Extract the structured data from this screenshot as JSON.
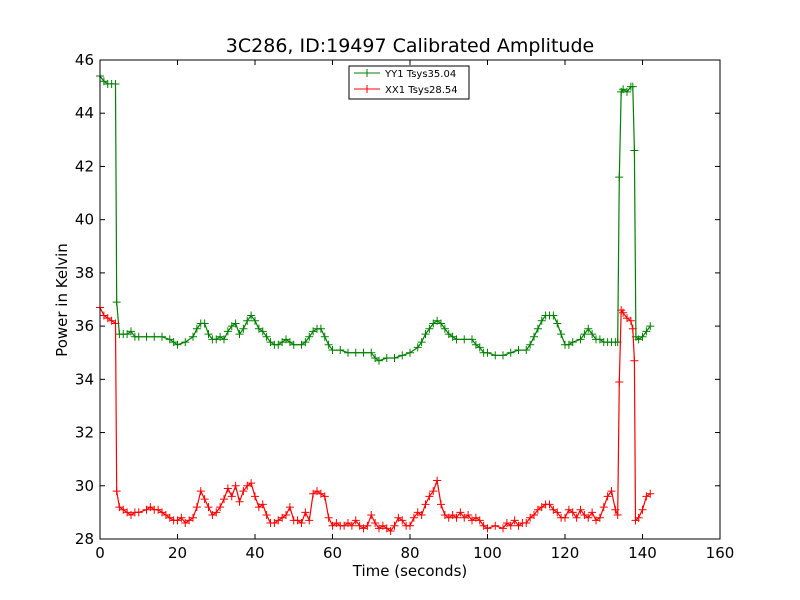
{
  "chart_data": {
    "type": "line",
    "title": "3C286, ID:19497 Calibrated Amplitude",
    "xlabel": "Time (seconds)",
    "ylabel": "Power in Kelvin",
    "xlim": [
      0,
      160
    ],
    "ylim": [
      28,
      46
    ],
    "xticks": [
      "0",
      "20",
      "40",
      "60",
      "80",
      "100",
      "120",
      "140",
      "160"
    ],
    "yticks": [
      "28",
      "30",
      "32",
      "34",
      "36",
      "38",
      "40",
      "42",
      "44",
      "46"
    ],
    "grid": false,
    "legend_position": "top-center",
    "marker": "plus",
    "series": [
      {
        "name": "YY1 Tsys35.04",
        "color": "#008000",
        "points": [
          [
            0,
            45.4
          ],
          [
            1,
            45.2
          ],
          [
            2,
            45.1
          ],
          [
            3,
            45.1
          ],
          [
            4,
            45.1
          ],
          [
            4.3,
            36.9
          ],
          [
            5,
            35.7
          ],
          [
            6,
            35.7
          ],
          [
            7,
            35.7
          ],
          [
            8,
            35.8
          ],
          [
            9,
            35.6
          ],
          [
            10,
            35.6
          ],
          [
            12,
            35.6
          ],
          [
            14,
            35.6
          ],
          [
            16,
            35.6
          ],
          [
            18,
            35.5
          ],
          [
            19,
            35.4
          ],
          [
            20,
            35.3
          ],
          [
            22,
            35.4
          ],
          [
            24,
            35.6
          ],
          [
            25,
            35.9
          ],
          [
            26,
            36.1
          ],
          [
            27,
            36.1
          ],
          [
            28,
            35.7
          ],
          [
            29,
            35.5
          ],
          [
            30,
            35.5
          ],
          [
            31,
            35.6
          ],
          [
            32,
            35.5
          ],
          [
            33,
            35.8
          ],
          [
            34,
            36.0
          ],
          [
            35,
            36.1
          ],
          [
            36,
            35.7
          ],
          [
            37,
            35.9
          ],
          [
            38,
            36.2
          ],
          [
            39,
            36.4
          ],
          [
            40,
            36.2
          ],
          [
            41,
            35.9
          ],
          [
            42,
            35.8
          ],
          [
            43,
            35.6
          ],
          [
            44,
            35.4
          ],
          [
            45,
            35.3
          ],
          [
            46,
            35.3
          ],
          [
            47,
            35.4
          ],
          [
            48,
            35.5
          ],
          [
            49,
            35.4
          ],
          [
            50,
            35.3
          ],
          [
            52,
            35.3
          ],
          [
            53,
            35.4
          ],
          [
            54,
            35.6
          ],
          [
            55,
            35.8
          ],
          [
            56,
            35.9
          ],
          [
            57,
            35.9
          ],
          [
            58,
            35.6
          ],
          [
            59,
            35.3
          ],
          [
            60,
            35.1
          ],
          [
            62,
            35.1
          ],
          [
            64,
            35.0
          ],
          [
            66,
            35.0
          ],
          [
            68,
            35.0
          ],
          [
            70,
            35.0
          ],
          [
            71,
            34.8
          ],
          [
            72,
            34.7
          ],
          [
            74,
            34.8
          ],
          [
            76,
            34.8
          ],
          [
            78,
            34.9
          ],
          [
            80,
            35.0
          ],
          [
            82,
            35.2
          ],
          [
            83,
            35.4
          ],
          [
            84,
            35.7
          ],
          [
            85,
            35.9
          ],
          [
            86,
            36.1
          ],
          [
            87,
            36.2
          ],
          [
            88,
            36.1
          ],
          [
            89,
            35.9
          ],
          [
            90,
            35.7
          ],
          [
            91,
            35.6
          ],
          [
            92,
            35.5
          ],
          [
            94,
            35.5
          ],
          [
            96,
            35.5
          ],
          [
            97,
            35.3
          ],
          [
            98,
            35.2
          ],
          [
            99,
            35.0
          ],
          [
            100,
            35.0
          ],
          [
            102,
            34.9
          ],
          [
            104,
            34.9
          ],
          [
            106,
            35.0
          ],
          [
            108,
            35.1
          ],
          [
            110,
            35.1
          ],
          [
            111,
            35.3
          ],
          [
            112,
            35.6
          ],
          [
            113,
            35.9
          ],
          [
            114,
            36.2
          ],
          [
            115,
            36.4
          ],
          [
            116,
            36.4
          ],
          [
            117,
            36.4
          ],
          [
            118,
            36.1
          ],
          [
            119,
            35.7
          ],
          [
            120,
            35.3
          ],
          [
            121,
            35.3
          ],
          [
            122,
            35.4
          ],
          [
            124,
            35.5
          ],
          [
            125,
            35.7
          ],
          [
            126,
            35.9
          ],
          [
            127,
            35.7
          ],
          [
            128,
            35.5
          ],
          [
            129,
            35.5
          ],
          [
            130,
            35.4
          ],
          [
            131,
            35.4
          ],
          [
            132,
            35.4
          ],
          [
            133,
            35.4
          ],
          [
            133.6,
            35.4
          ],
          [
            134,
            41.6
          ],
          [
            134.5,
            44.8
          ],
          [
            135,
            44.9
          ],
          [
            136,
            44.8
          ],
          [
            137,
            45.0
          ],
          [
            137.5,
            45.0
          ],
          [
            137.9,
            42.6
          ],
          [
            138.3,
            35.6
          ],
          [
            139,
            35.5
          ],
          [
            140,
            35.6
          ],
          [
            141,
            35.8
          ],
          [
            142,
            36.0
          ]
        ]
      },
      {
        "name": "XX1 Tsys28.54",
        "color": "#ff0000",
        "points": [
          [
            0,
            36.7
          ],
          [
            1,
            36.4
          ],
          [
            2,
            36.3
          ],
          [
            3,
            36.2
          ],
          [
            4,
            36.1
          ],
          [
            4.3,
            29.8
          ],
          [
            5,
            29.2
          ],
          [
            6,
            29.1
          ],
          [
            7,
            29.0
          ],
          [
            8,
            28.9
          ],
          [
            9,
            29.0
          ],
          [
            10,
            29.0
          ],
          [
            12,
            29.1
          ],
          [
            13,
            29.2
          ],
          [
            14,
            29.1
          ],
          [
            15,
            29.1
          ],
          [
            16,
            29.0
          ],
          [
            17,
            28.9
          ],
          [
            18,
            28.8
          ],
          [
            19,
            28.7
          ],
          [
            20,
            28.7
          ],
          [
            21,
            28.8
          ],
          [
            22,
            28.6
          ],
          [
            23,
            28.7
          ],
          [
            24,
            28.8
          ],
          [
            25,
            29.2
          ],
          [
            26,
            29.8
          ],
          [
            27,
            29.5
          ],
          [
            28,
            29.2
          ],
          [
            29,
            28.9
          ],
          [
            30,
            29.0
          ],
          [
            31,
            29.2
          ],
          [
            32,
            29.5
          ],
          [
            33,
            29.9
          ],
          [
            34,
            29.6
          ],
          [
            35,
            30.0
          ],
          [
            36,
            29.4
          ],
          [
            37,
            29.8
          ],
          [
            38,
            30.0
          ],
          [
            39,
            30.1
          ],
          [
            40,
            29.6
          ],
          [
            41,
            29.2
          ],
          [
            42,
            29.3
          ],
          [
            43,
            28.9
          ],
          [
            44,
            28.6
          ],
          [
            45,
            28.6
          ],
          [
            46,
            28.7
          ],
          [
            47,
            28.8
          ],
          [
            48,
            28.9
          ],
          [
            49,
            29.2
          ],
          [
            50,
            28.7
          ],
          [
            51,
            28.7
          ],
          [
            52,
            28.6
          ],
          [
            53,
            29.0
          ],
          [
            54,
            28.7
          ],
          [
            55,
            29.7
          ],
          [
            56,
            29.8
          ],
          [
            57,
            29.7
          ],
          [
            58,
            29.6
          ],
          [
            59,
            28.8
          ],
          [
            60,
            28.5
          ],
          [
            61,
            28.6
          ],
          [
            62,
            28.5
          ],
          [
            63,
            28.5
          ],
          [
            64,
            28.6
          ],
          [
            65,
            28.5
          ],
          [
            66,
            28.7
          ],
          [
            67,
            28.5
          ],
          [
            68,
            28.4
          ],
          [
            69,
            28.5
          ],
          [
            70,
            28.9
          ],
          [
            71,
            28.6
          ],
          [
            72,
            28.4
          ],
          [
            73,
            28.5
          ],
          [
            74,
            28.4
          ],
          [
            75,
            28.3
          ],
          [
            76,
            28.5
          ],
          [
            77,
            28.8
          ],
          [
            78,
            28.7
          ],
          [
            79,
            28.5
          ],
          [
            80,
            28.5
          ],
          [
            81,
            28.8
          ],
          [
            82,
            29.0
          ],
          [
            83,
            28.9
          ],
          [
            84,
            29.3
          ],
          [
            85,
            29.6
          ],
          [
            86,
            29.8
          ],
          [
            87,
            30.2
          ],
          [
            88,
            29.3
          ],
          [
            89,
            28.9
          ],
          [
            90,
            28.8
          ],
          [
            91,
            28.9
          ],
          [
            92,
            28.8
          ],
          [
            93,
            29.0
          ],
          [
            94,
            28.8
          ],
          [
            95,
            28.9
          ],
          [
            96,
            28.7
          ],
          [
            97,
            28.8
          ],
          [
            98,
            28.7
          ],
          [
            99,
            28.5
          ],
          [
            100,
            28.4
          ],
          [
            102,
            28.5
          ],
          [
            104,
            28.4
          ],
          [
            105,
            28.6
          ],
          [
            106,
            28.5
          ],
          [
            107,
            28.7
          ],
          [
            108,
            28.5
          ],
          [
            109,
            28.6
          ],
          [
            110,
            28.6
          ],
          [
            111,
            28.8
          ],
          [
            112,
            28.9
          ],
          [
            113,
            29.1
          ],
          [
            114,
            29.2
          ],
          [
            115,
            29.3
          ],
          [
            116,
            29.3
          ],
          [
            117,
            29.1
          ],
          [
            118,
            29.0
          ],
          [
            119,
            28.8
          ],
          [
            120,
            28.8
          ],
          [
            121,
            29.1
          ],
          [
            122,
            29.0
          ],
          [
            123,
            28.8
          ],
          [
            124,
            29.1
          ],
          [
            125,
            28.9
          ],
          [
            126,
            28.8
          ],
          [
            127,
            29.0
          ],
          [
            128,
            28.7
          ],
          [
            129,
            28.8
          ],
          [
            130,
            29.2
          ],
          [
            131,
            29.6
          ],
          [
            132,
            29.8
          ],
          [
            133,
            29.1
          ],
          [
            133.6,
            28.9
          ],
          [
            134,
            33.9
          ],
          [
            134.5,
            36.6
          ],
          [
            135,
            36.5
          ],
          [
            136,
            36.3
          ],
          [
            137,
            36.2
          ],
          [
            137.5,
            35.9
          ],
          [
            137.9,
            34.7
          ],
          [
            138.2,
            28.7
          ],
          [
            139,
            28.8
          ],
          [
            140,
            29.1
          ],
          [
            141,
            29.6
          ],
          [
            142,
            29.7
          ]
        ]
      }
    ]
  }
}
